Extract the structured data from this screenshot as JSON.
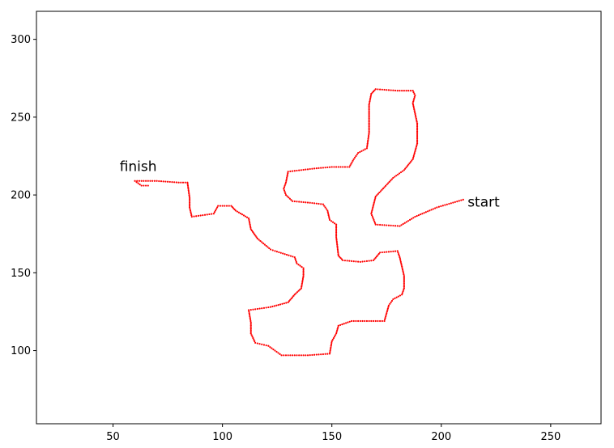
{
  "chart_data": {
    "type": "scatter",
    "title": "",
    "xlabel": "",
    "ylabel": "",
    "xlim": [
      15,
      273
    ],
    "ylim": [
      53,
      318
    ],
    "xticks": [
      50,
      100,
      150,
      200,
      250
    ],
    "yticks": [
      100,
      150,
      200,
      250,
      300
    ],
    "grid": false,
    "legend": "none",
    "marker_color": "#ff0000",
    "annotations": [
      {
        "text": "start",
        "x": 212,
        "y": 193
      },
      {
        "text": "finish",
        "x": 53,
        "y": 216
      }
    ],
    "path_vertices": [
      [
        210,
        197
      ],
      [
        198,
        192
      ],
      [
        188,
        186
      ],
      [
        181,
        180
      ],
      [
        170,
        181
      ],
      [
        168,
        188
      ],
      [
        170,
        199
      ],
      [
        178,
        211
      ],
      [
        183,
        216
      ],
      [
        187,
        223
      ],
      [
        189,
        233
      ],
      [
        189,
        246
      ],
      [
        187,
        259
      ],
      [
        188,
        264
      ],
      [
        187,
        267
      ],
      [
        180,
        267
      ],
      [
        170,
        268
      ],
      [
        168,
        265
      ],
      [
        167,
        258
      ],
      [
        167,
        240
      ],
      [
        166,
        230
      ],
      [
        162,
        227
      ],
      [
        160,
        223
      ],
      [
        158,
        218
      ],
      [
        150,
        218
      ],
      [
        142,
        217
      ],
      [
        130,
        215
      ],
      [
        129,
        208
      ],
      [
        128,
        204
      ],
      [
        129,
        200
      ],
      [
        132,
        196
      ],
      [
        140,
        195
      ],
      [
        146,
        194
      ],
      [
        148,
        190
      ],
      [
        149,
        184
      ],
      [
        152,
        181
      ],
      [
        152,
        173
      ],
      [
        153,
        161
      ],
      [
        155,
        158
      ],
      [
        163,
        157
      ],
      [
        169,
        158
      ],
      [
        172,
        163
      ],
      [
        180,
        164
      ],
      [
        181,
        160
      ],
      [
        182,
        154
      ],
      [
        183,
        148
      ],
      [
        183,
        140
      ],
      [
        182,
        136
      ],
      [
        178,
        133
      ],
      [
        176,
        129
      ],
      [
        175,
        124
      ],
      [
        174,
        119
      ],
      [
        162,
        119
      ],
      [
        159,
        119
      ],
      [
        153,
        116
      ],
      [
        152,
        111
      ],
      [
        150,
        106
      ],
      [
        149,
        98
      ],
      [
        139,
        97
      ],
      [
        127,
        97
      ],
      [
        124,
        100
      ],
      [
        121,
        103
      ],
      [
        115,
        105
      ],
      [
        113,
        111
      ],
      [
        113,
        118
      ],
      [
        112,
        126
      ],
      [
        117,
        127
      ],
      [
        122,
        128
      ],
      [
        130,
        131
      ],
      [
        133,
        136
      ],
      [
        136,
        140
      ],
      [
        137,
        148
      ],
      [
        137,
        153
      ],
      [
        134,
        156
      ],
      [
        133,
        160
      ],
      [
        124,
        164
      ],
      [
        122,
        165
      ],
      [
        116,
        172
      ],
      [
        113,
        178
      ],
      [
        112,
        185
      ],
      [
        106,
        190
      ],
      [
        104,
        193
      ],
      [
        98,
        193
      ],
      [
        96,
        188
      ],
      [
        91,
        187
      ],
      [
        86,
        186
      ],
      [
        85,
        192
      ],
      [
        85,
        198
      ],
      [
        84,
        208
      ],
      [
        80,
        208
      ],
      [
        70,
        209
      ],
      [
        60,
        209
      ],
      [
        63,
        206
      ],
      [
        66,
        206
      ]
    ]
  }
}
